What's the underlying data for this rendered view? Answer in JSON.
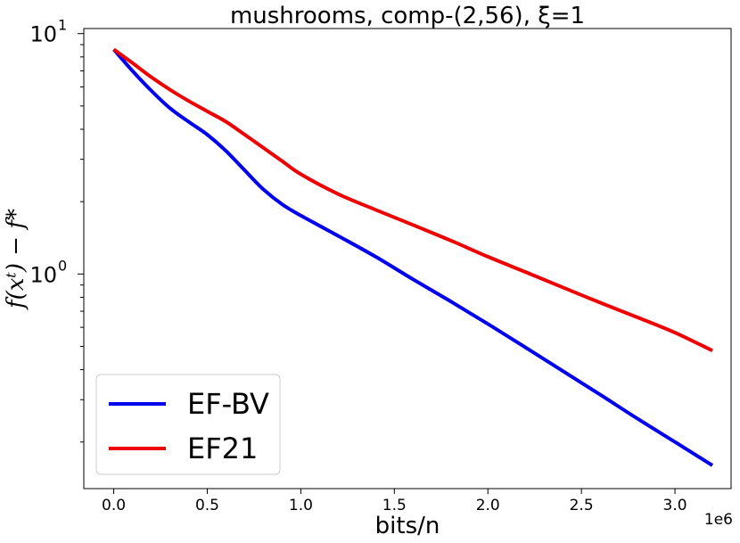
{
  "chart_data": {
    "type": "line",
    "title": "mushrooms, comp-(2,56), ξ=1",
    "xlabel": "bits/n",
    "ylabel": "f(xᵗ) − f*",
    "x_offset_label": "1e6",
    "xlim": [
      -0.16,
      3.3
    ],
    "ylim": [
      0.128,
      10.5
    ],
    "yscale": "log",
    "grid": false,
    "legend_position": "lower-left",
    "x_ticks": [
      {
        "value": 0.0,
        "label": "0.0"
      },
      {
        "value": 0.5,
        "label": "0.5"
      },
      {
        "value": 1.0,
        "label": "1.0"
      },
      {
        "value": 1.5,
        "label": "1.5"
      },
      {
        "value": 2.0,
        "label": "2.0"
      },
      {
        "value": 2.5,
        "label": "2.5"
      },
      {
        "value": 3.0,
        "label": "3.0"
      }
    ],
    "y_ticks": [
      {
        "value": 1,
        "base": "10",
        "exp": "0"
      },
      {
        "value": 10,
        "base": "10",
        "exp": "1"
      }
    ],
    "series": [
      {
        "name": "EF-BV",
        "color": "#0000ee",
        "x": [
          0.0,
          0.1,
          0.2,
          0.3,
          0.4,
          0.5,
          0.6,
          0.7,
          0.8,
          0.9,
          1.0,
          1.2,
          1.4,
          1.6,
          1.8,
          2.0,
          2.2,
          2.4,
          2.6,
          2.8,
          3.0,
          3.2
        ],
        "y": [
          8.6,
          7.0,
          5.8,
          4.9,
          4.3,
          3.8,
          3.25,
          2.7,
          2.25,
          1.95,
          1.75,
          1.44,
          1.18,
          0.95,
          0.77,
          0.62,
          0.495,
          0.395,
          0.315,
          0.25,
          0.2,
          0.16
        ]
      },
      {
        "name": "EF21",
        "color": "#ee0000",
        "x": [
          0.0,
          0.1,
          0.2,
          0.3,
          0.4,
          0.5,
          0.6,
          0.7,
          0.8,
          0.9,
          1.0,
          1.2,
          1.4,
          1.6,
          1.8,
          2.0,
          2.2,
          2.4,
          2.6,
          2.8,
          3.0,
          3.2
        ],
        "y": [
          8.6,
          7.55,
          6.6,
          5.85,
          5.25,
          4.75,
          4.3,
          3.8,
          3.35,
          2.95,
          2.6,
          2.15,
          1.85,
          1.6,
          1.38,
          1.18,
          1.02,
          0.88,
          0.76,
          0.66,
          0.57,
          0.48
        ]
      }
    ]
  }
}
